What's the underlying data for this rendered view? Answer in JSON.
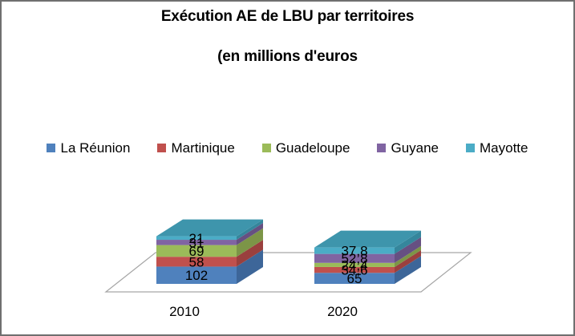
{
  "title": {
    "line1": "Exécution AE de LBU par territoires",
    "line2": "(en millions d'euros"
  },
  "colors": {
    "chart_border": "#6f6f6f",
    "floor_line": "#a6a6a6",
    "bar_top_face": "#3e95ac",
    "label_text": "#000000"
  },
  "chart_data": {
    "type": "bar",
    "subtype": "3d-stacked",
    "title": "Exécution AE de LBU par territoires (en millions d'euros",
    "xlabel": "",
    "ylabel": "",
    "legend_position": "top",
    "grid": false,
    "categories": [
      "2010",
      "2020"
    ],
    "series": [
      {
        "name": "La Réunion",
        "color": "#4f81bd",
        "side_color": "#3d6699",
        "values": [
          102,
          65
        ],
        "labels": [
          "102",
          "65"
        ]
      },
      {
        "name": "Martinique",
        "color": "#c0504d",
        "side_color": "#9a403e",
        "values": [
          58,
          34.6
        ],
        "labels": [
          "58",
          "34,6"
        ]
      },
      {
        "name": "Guadeloupe",
        "color": "#9bbb59",
        "side_color": "#7c9547",
        "values": [
          69,
          24.4
        ],
        "labels": [
          "69",
          "24,4"
        ]
      },
      {
        "name": "Guyane",
        "color": "#8064a2",
        "side_color": "#665082",
        "values": [
          31,
          52.8
        ],
        "labels": [
          "31",
          "52,8"
        ]
      },
      {
        "name": "Mayotte",
        "color": "#4bacc6",
        "side_color": "#35869c",
        "values": [
          21,
          37.8
        ],
        "labels": [
          "21",
          "37,8"
        ]
      }
    ]
  }
}
